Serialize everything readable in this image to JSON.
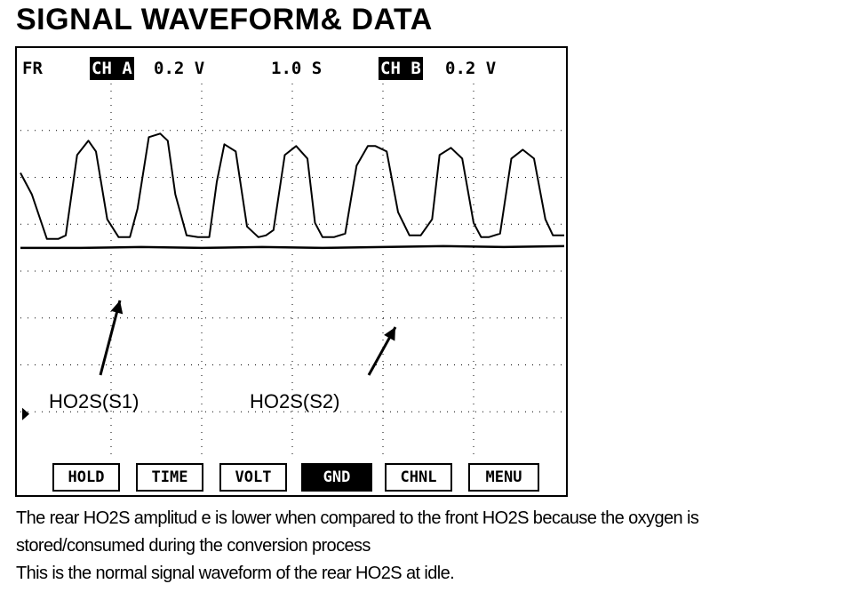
{
  "page": {
    "title": "SIGNAL WAVEFORM& DATA"
  },
  "scope": {
    "status": {
      "mode": "FR",
      "ch_a_label": "CH A",
      "ch_a_scale": "0.2 V",
      "timebase": "1.0 S",
      "ch_b_label": "CH B",
      "ch_b_scale": "0.2 V"
    },
    "softkeys": [
      {
        "label": "HOLD",
        "active": false
      },
      {
        "label": "TIME",
        "active": false
      },
      {
        "label": "VOLT",
        "active": false
      },
      {
        "label": "GND",
        "active": true
      },
      {
        "label": "CHNL",
        "active": false
      },
      {
        "label": "MENU",
        "active": false
      }
    ]
  },
  "chart_data": {
    "type": "line",
    "title": "",
    "xlabel": "",
    "ylabel": "",
    "grid": true,
    "annotations": [
      "HO2S(S1)",
      "HO2S(S2)"
    ],
    "series": [
      {
        "name": "HO2S(S1)",
        "description_key": "front",
        "x": [
          0.0,
          0.15,
          0.35,
          0.5,
          0.6,
          0.75,
          0.9,
          1.0,
          1.15,
          1.3,
          1.45,
          1.55,
          1.7,
          1.85,
          1.95,
          2.05,
          2.2,
          2.35,
          2.5,
          2.6,
          2.7,
          2.85,
          3.0,
          3.15,
          3.25,
          3.35,
          3.5,
          3.65,
          3.8,
          3.9,
          4.0,
          4.15,
          4.3,
          4.45,
          4.6,
          4.7,
          4.85,
          5.0,
          5.15,
          5.3,
          5.45,
          5.55,
          5.7,
          5.85,
          6.0,
          6.1,
          6.2,
          6.35,
          6.5,
          6.65,
          6.8,
          6.95,
          7.05,
          7.2
        ],
        "y": [
          0.4,
          0.28,
          0.03,
          0.03,
          0.05,
          0.5,
          0.58,
          0.52,
          0.14,
          0.04,
          0.04,
          0.2,
          0.6,
          0.62,
          0.58,
          0.28,
          0.05,
          0.04,
          0.04,
          0.35,
          0.56,
          0.52,
          0.1,
          0.04,
          0.05,
          0.08,
          0.5,
          0.55,
          0.48,
          0.12,
          0.04,
          0.04,
          0.06,
          0.44,
          0.55,
          0.55,
          0.52,
          0.18,
          0.05,
          0.05,
          0.14,
          0.5,
          0.54,
          0.48,
          0.12,
          0.04,
          0.04,
          0.06,
          0.48,
          0.53,
          0.48,
          0.14,
          0.05,
          0.05
        ]
      },
      {
        "name": "HO2S(S2)",
        "description_key": "rear",
        "x": [
          0.0,
          0.8,
          1.6,
          2.4,
          3.2,
          4.0,
          4.8,
          5.6,
          6.4,
          7.2
        ],
        "y": [
          -0.02,
          -0.02,
          -0.015,
          -0.02,
          -0.015,
          -0.02,
          -0.015,
          -0.01,
          -0.015,
          -0.01
        ]
      }
    ]
  },
  "description": {
    "line1": "The rear HO2S amplitud e is lower when compared to the front HO2S because the oxygen is",
    "line2": "stored/consumed during the conversion process",
    "line3": "This is the normal signal waveform of the rear HO2S at idle."
  }
}
